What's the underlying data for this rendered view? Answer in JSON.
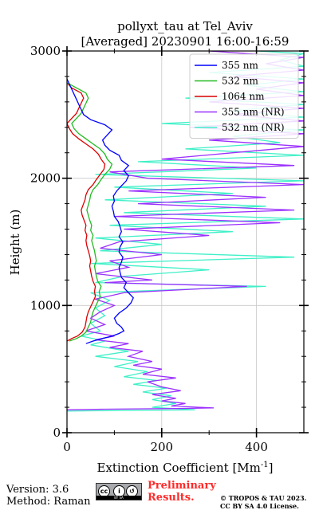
{
  "chart_data": {
    "type": "line",
    "title_line1": "pollyxt_tau at Tel_Aviv",
    "title_line2": "[Averaged] 20230901 16:00-16:59",
    "xlabel": "Extinction Coefficient [Mm",
    "xlabel_sup": "-1",
    "xlabel_end": "]",
    "ylabel": "Height (m)",
    "xlim": [
      0,
      500
    ],
    "ylim": [
      0,
      3000
    ],
    "xticks": [
      0,
      200,
      400
    ],
    "yticks": [
      0,
      1000,
      2000,
      3000
    ],
    "grid": true,
    "legend_position": "top-right",
    "series": [
      {
        "name": "355 nm",
        "color": "#0000ff",
        "points": [
          [
            40,
            700
          ],
          [
            55,
            720
          ],
          [
            75,
            740
          ],
          [
            95,
            760
          ],
          [
            110,
            780
          ],
          [
            120,
            800
          ],
          [
            115,
            830
          ],
          [
            105,
            860
          ],
          [
            100,
            900
          ],
          [
            110,
            940
          ],
          [
            125,
            980
          ],
          [
            135,
            1020
          ],
          [
            140,
            1060
          ],
          [
            130,
            1100
          ],
          [
            120,
            1140
          ],
          [
            125,
            1180
          ],
          [
            115,
            1220
          ],
          [
            112,
            1260
          ],
          [
            110,
            1300
          ],
          [
            115,
            1340
          ],
          [
            118,
            1380
          ],
          [
            110,
            1420
          ],
          [
            112,
            1460
          ],
          [
            118,
            1500
          ],
          [
            110,
            1540
          ],
          [
            115,
            1580
          ],
          [
            112,
            1620
          ],
          [
            108,
            1660
          ],
          [
            100,
            1700
          ],
          [
            98,
            1740
          ],
          [
            95,
            1780
          ],
          [
            100,
            1820
          ],
          [
            98,
            1860
          ],
          [
            105,
            1900
          ],
          [
            115,
            1940
          ],
          [
            125,
            1980
          ],
          [
            130,
            2020
          ],
          [
            120,
            2060
          ],
          [
            130,
            2100
          ],
          [
            115,
            2140
          ],
          [
            110,
            2180
          ],
          [
            90,
            2220
          ],
          [
            80,
            2260
          ],
          [
            75,
            2300
          ],
          [
            85,
            2340
          ],
          [
            95,
            2380
          ],
          [
            80,
            2420
          ],
          [
            50,
            2460
          ],
          [
            35,
            2500
          ],
          [
            30,
            2540
          ],
          [
            25,
            2580
          ],
          [
            20,
            2620
          ],
          [
            15,
            2660
          ],
          [
            10,
            2700
          ],
          [
            5,
            2740
          ],
          [
            0,
            2780
          ]
        ]
      },
      {
        "name": "532 nm",
        "color": "#22bb22",
        "points": [
          [
            5,
            720
          ],
          [
            20,
            740
          ],
          [
            30,
            760
          ],
          [
            40,
            790
          ],
          [
            45,
            830
          ],
          [
            50,
            870
          ],
          [
            52,
            910
          ],
          [
            55,
            950
          ],
          [
            60,
            990
          ],
          [
            65,
            1030
          ],
          [
            70,
            1070
          ],
          [
            68,
            1110
          ],
          [
            72,
            1150
          ],
          [
            65,
            1190
          ],
          [
            62,
            1230
          ],
          [
            60,
            1270
          ],
          [
            58,
            1310
          ],
          [
            62,
            1350
          ],
          [
            60,
            1390
          ],
          [
            58,
            1430
          ],
          [
            55,
            1470
          ],
          [
            52,
            1510
          ],
          [
            55,
            1550
          ],
          [
            50,
            1590
          ],
          [
            52,
            1630
          ],
          [
            48,
            1670
          ],
          [
            45,
            1710
          ],
          [
            42,
            1750
          ],
          [
            45,
            1790
          ],
          [
            48,
            1830
          ],
          [
            50,
            1870
          ],
          [
            55,
            1910
          ],
          [
            65,
            1950
          ],
          [
            72,
            1990
          ],
          [
            80,
            2030
          ],
          [
            90,
            2070
          ],
          [
            95,
            2110
          ],
          [
            85,
            2150
          ],
          [
            80,
            2190
          ],
          [
            70,
            2230
          ],
          [
            55,
            2270
          ],
          [
            40,
            2310
          ],
          [
            25,
            2350
          ],
          [
            15,
            2390
          ],
          [
            10,
            2430
          ],
          [
            20,
            2470
          ],
          [
            30,
            2510
          ],
          [
            35,
            2550
          ],
          [
            40,
            2590
          ],
          [
            45,
            2630
          ],
          [
            40,
            2670
          ],
          [
            20,
            2710
          ],
          [
            0,
            2750
          ]
        ]
      },
      {
        "name": "1064 nm",
        "color": "#dd0000",
        "points": [
          [
            0,
            720
          ],
          [
            10,
            740
          ],
          [
            22,
            760
          ],
          [
            32,
            790
          ],
          [
            38,
            830
          ],
          [
            40,
            870
          ],
          [
            42,
            910
          ],
          [
            45,
            950
          ],
          [
            50,
            990
          ],
          [
            55,
            1030
          ],
          [
            60,
            1070
          ],
          [
            58,
            1110
          ],
          [
            60,
            1150
          ],
          [
            55,
            1190
          ],
          [
            52,
            1230
          ],
          [
            50,
            1270
          ],
          [
            48,
            1310
          ],
          [
            50,
            1350
          ],
          [
            48,
            1390
          ],
          [
            45,
            1430
          ],
          [
            42,
            1470
          ],
          [
            40,
            1510
          ],
          [
            42,
            1550
          ],
          [
            38,
            1590
          ],
          [
            40,
            1630
          ],
          [
            36,
            1670
          ],
          [
            32,
            1710
          ],
          [
            30,
            1750
          ],
          [
            34,
            1790
          ],
          [
            38,
            1830
          ],
          [
            40,
            1870
          ],
          [
            45,
            1910
          ],
          [
            55,
            1950
          ],
          [
            62,
            1990
          ],
          [
            70,
            2030
          ],
          [
            78,
            2070
          ],
          [
            80,
            2110
          ],
          [
            72,
            2150
          ],
          [
            66,
            2190
          ],
          [
            55,
            2230
          ],
          [
            40,
            2270
          ],
          [
            25,
            2310
          ],
          [
            12,
            2350
          ],
          [
            5,
            2390
          ],
          [
            0,
            2430
          ],
          [
            10,
            2470
          ],
          [
            20,
            2510
          ],
          [
            25,
            2550
          ],
          [
            30,
            2590
          ],
          [
            35,
            2630
          ],
          [
            30,
            2670
          ],
          [
            10,
            2710
          ],
          [
            0,
            2750
          ]
        ]
      },
      {
        "name": "355 nm (NR)",
        "color": "#9b30ff",
        "points": [
          [
            0,
            180
          ],
          [
            80,
            185
          ],
          [
            230,
            190
          ],
          [
            310,
            195
          ],
          [
            280,
            200
          ],
          [
            220,
            210
          ],
          [
            250,
            230
          ],
          [
            200,
            250
          ],
          [
            230,
            270
          ],
          [
            180,
            300
          ],
          [
            240,
            330
          ],
          [
            200,
            360
          ],
          [
            170,
            400
          ],
          [
            230,
            430
          ],
          [
            160,
            460
          ],
          [
            200,
            500
          ],
          [
            140,
            530
          ],
          [
            180,
            560
          ],
          [
            130,
            600
          ],
          [
            160,
            640
          ],
          [
            90,
            670
          ],
          [
            130,
            700
          ],
          [
            60,
            730
          ],
          [
            100,
            760
          ],
          [
            40,
            800
          ],
          [
            80,
            850
          ],
          [
            50,
            900
          ],
          [
            70,
            950
          ],
          [
            100,
            1000
          ],
          [
            60,
            1050
          ],
          [
            120,
            1100
          ],
          [
            380,
            1150
          ],
          [
            80,
            1180
          ],
          [
            180,
            1200
          ],
          [
            60,
            1250
          ],
          [
            130,
            1300
          ],
          [
            90,
            1350
          ],
          [
            200,
            1400
          ],
          [
            70,
            1450
          ],
          [
            110,
            1500
          ],
          [
            300,
            1550
          ],
          [
            120,
            1600
          ],
          [
            450,
            1650
          ],
          [
            100,
            1700
          ],
          [
            480,
            1750
          ],
          [
            150,
            1800
          ],
          [
            420,
            1850
          ],
          [
            130,
            1900
          ],
          [
            500,
            1950
          ],
          [
            170,
            2000
          ],
          [
            90,
            2050
          ],
          [
            480,
            2100
          ],
          [
            200,
            2150
          ],
          [
            350,
            2200
          ],
          [
            500,
            2250
          ],
          [
            300,
            2300
          ],
          [
            500,
            2350
          ],
          [
            260,
            2400
          ],
          [
            500,
            2450
          ],
          [
            350,
            2500
          ],
          [
            500,
            2550
          ],
          [
            300,
            2600
          ],
          [
            500,
            2650
          ],
          [
            400,
            2700
          ],
          [
            500,
            2750
          ],
          [
            350,
            2800
          ],
          [
            500,
            2850
          ],
          [
            420,
            2900
          ],
          [
            500,
            2950
          ],
          [
            300,
            3000
          ]
        ]
      },
      {
        "name": "532 nm (NR)",
        "color": "#40f0c8",
        "points": [
          [
            0,
            170
          ],
          [
            120,
            175
          ],
          [
            270,
            180
          ],
          [
            180,
            200
          ],
          [
            230,
            230
          ],
          [
            180,
            260
          ],
          [
            220,
            290
          ],
          [
            160,
            320
          ],
          [
            210,
            350
          ],
          [
            140,
            380
          ],
          [
            190,
            410
          ],
          [
            120,
            440
          ],
          [
            170,
            480
          ],
          [
            100,
            520
          ],
          [
            150,
            560
          ],
          [
            60,
            600
          ],
          [
            130,
            640
          ],
          [
            50,
            690
          ],
          [
            80,
            720
          ],
          [
            30,
            760
          ],
          [
            70,
            800
          ],
          [
            50,
            860
          ],
          [
            80,
            920
          ],
          [
            60,
            980
          ],
          [
            90,
            1040
          ],
          [
            50,
            1100
          ],
          [
            420,
            1150
          ],
          [
            60,
            1180
          ],
          [
            120,
            1230
          ],
          [
            300,
            1280
          ],
          [
            50,
            1330
          ],
          [
            480,
            1380
          ],
          [
            70,
            1430
          ],
          [
            200,
            1480
          ],
          [
            60,
            1530
          ],
          [
            350,
            1580
          ],
          [
            90,
            1630
          ],
          [
            500,
            1680
          ],
          [
            120,
            1730
          ],
          [
            420,
            1780
          ],
          [
            80,
            1830
          ],
          [
            350,
            1880
          ],
          [
            100,
            1930
          ],
          [
            500,
            1980
          ],
          [
            60,
            2030
          ],
          [
            400,
            2080
          ],
          [
            150,
            2130
          ],
          [
            500,
            2180
          ],
          [
            250,
            2230
          ],
          [
            450,
            2280
          ],
          [
            350,
            2330
          ],
          [
            500,
            2380
          ],
          [
            200,
            2430
          ],
          [
            500,
            2480
          ],
          [
            350,
            2530
          ],
          [
            500,
            2580
          ],
          [
            250,
            2630
          ],
          [
            500,
            2680
          ],
          [
            380,
            2730
          ],
          [
            500,
            2780
          ],
          [
            300,
            2830
          ],
          [
            500,
            2880
          ],
          [
            450,
            2930
          ],
          [
            500,
            2980
          ],
          [
            400,
            3000
          ]
        ]
      }
    ]
  },
  "footer": {
    "version": "Version: 3.6",
    "method": "Method: Raman",
    "preliminary_line1": "Preliminary",
    "preliminary_line2": "Results.",
    "copyright_line1": "© TROPOS & TAU 2023.",
    "copyright_line2": "CC BY SA 4.0 License."
  }
}
